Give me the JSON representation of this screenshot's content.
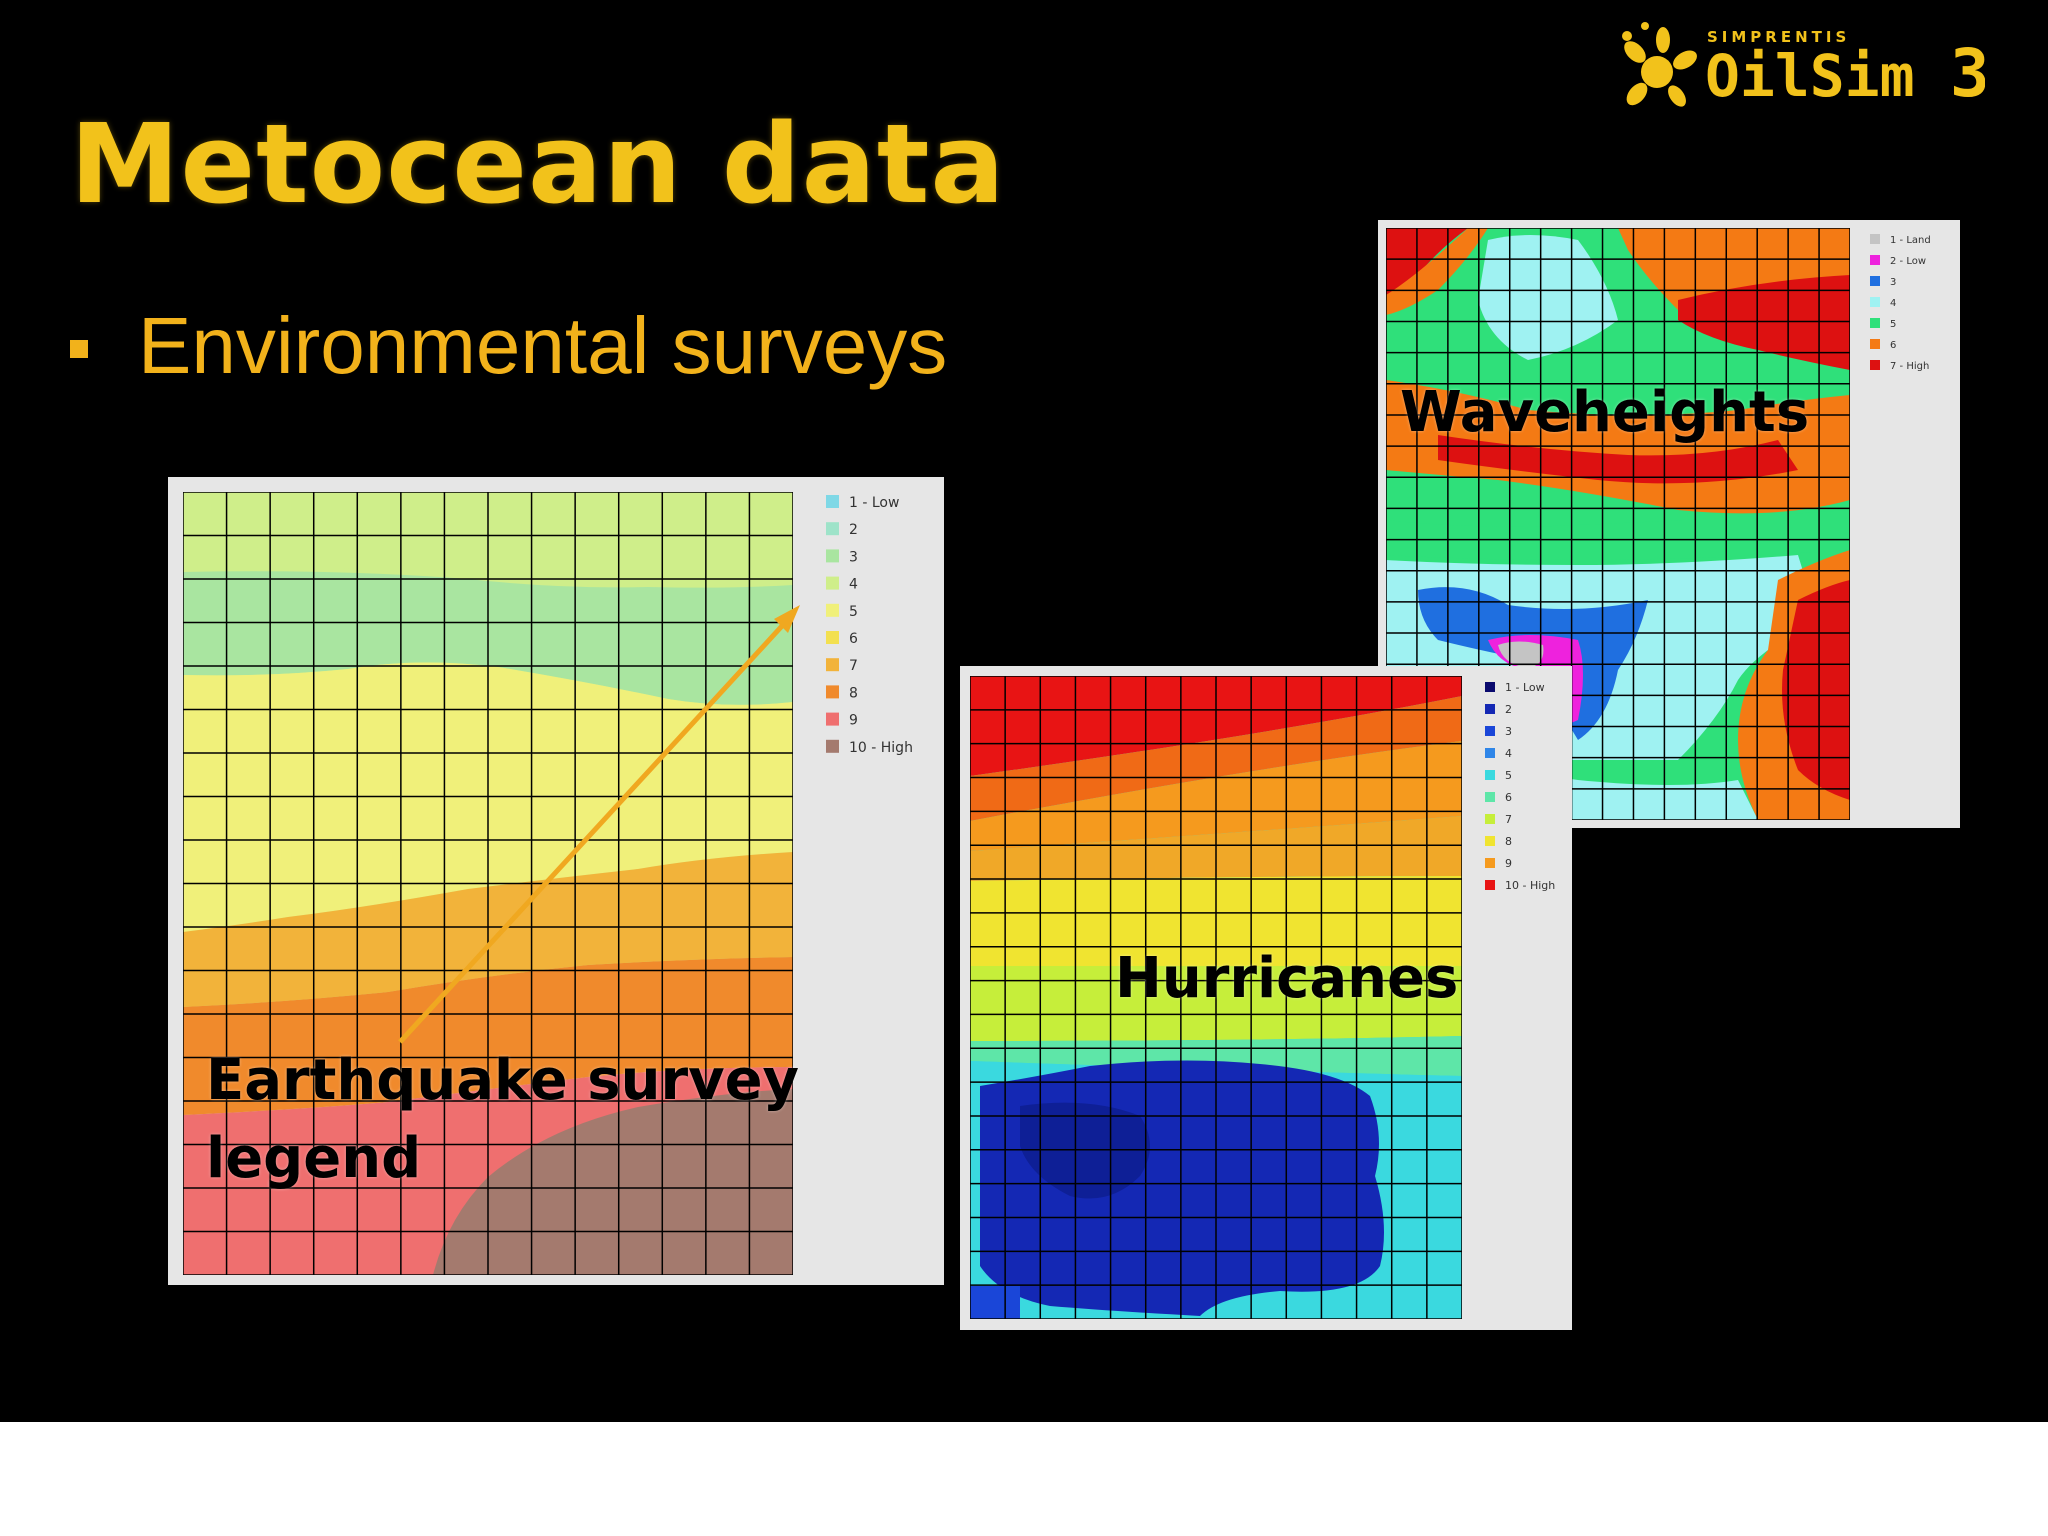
{
  "slide": {
    "title": "Metocean data",
    "bullet": "Environmental surveys",
    "logo": {
      "brand": "SIMPRENTIS",
      "product": "OilSim",
      "version": "3",
      "accent": "#f2c21b"
    }
  },
  "panels": {
    "earthquake": {
      "callout": [
        "Earthquake survey",
        "legend"
      ],
      "legend": [
        {
          "label": "1 - Low",
          "color": "#7fd8e6"
        },
        {
          "label": "2",
          "color": "#9ee3c9"
        },
        {
          "label": "3",
          "color": "#a9e5a0"
        },
        {
          "label": "4",
          "color": "#cfee8a"
        },
        {
          "label": "5",
          "color": "#f0f07a"
        },
        {
          "label": "6",
          "color": "#f3e050"
        },
        {
          "label": "7",
          "color": "#f2b33a"
        },
        {
          "label": "8",
          "color": "#f08a2c"
        },
        {
          "label": "9",
          "color": "#ef6f6f"
        },
        {
          "label": "10 - High",
          "color": "#a47a6e"
        }
      ],
      "arrow_color": "#f0a820"
    },
    "hurricanes": {
      "callout": "Hurricanes",
      "legend": [
        {
          "label": "1 - Low",
          "color": "#0a0a6e"
        },
        {
          "label": "2",
          "color": "#1428b4"
        },
        {
          "label": "3",
          "color": "#1a46d8"
        },
        {
          "label": "4",
          "color": "#2f86e8"
        },
        {
          "label": "5",
          "color": "#3ad9df"
        },
        {
          "label": "6",
          "color": "#5ee6a8"
        },
        {
          "label": "7",
          "color": "#c6ee3a"
        },
        {
          "label": "8",
          "color": "#f0e430"
        },
        {
          "label": "9",
          "color": "#f59a1e"
        },
        {
          "label": "10 - High",
          "color": "#e81414"
        }
      ]
    },
    "waveheights": {
      "callout": "Waveheights",
      "legend": [
        {
          "label": "1 - Land",
          "color": "#c4c4c4"
        },
        {
          "label": "2 - Low",
          "color": "#ee22dd"
        },
        {
          "label": "3",
          "color": "#1f6fe0"
        },
        {
          "label": "4",
          "color": "#9ff2f2"
        },
        {
          "label": "5",
          "color": "#2fe07a"
        },
        {
          "label": "6",
          "color": "#f47a14"
        },
        {
          "label": "7 - High",
          "color": "#dd1111"
        }
      ]
    }
  }
}
